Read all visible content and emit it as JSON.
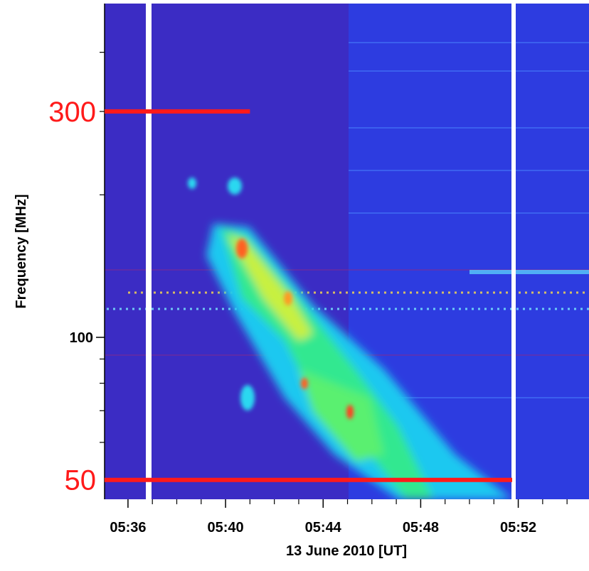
{
  "chart_data": {
    "type": "spectrogram",
    "xlabel": "13 June 2010 [UT]",
    "ylabel": "Frequency [MHz]",
    "xlim": [
      335.04,
      354.9
    ],
    "xticks": [
      {
        "value": 336,
        "label": "05:36"
      },
      {
        "value": 340,
        "label": "05:40"
      },
      {
        "value": 344,
        "label": "05:44"
      },
      {
        "value": 348,
        "label": "05:48"
      },
      {
        "value": 352,
        "label": "05:52"
      }
    ],
    "xminorticks": [
      337,
      338,
      339,
      341,
      342,
      343,
      345,
      346,
      347,
      349,
      350,
      351,
      353,
      354
    ],
    "ylog": true,
    "ylim": [
      45.5,
      507
    ],
    "yticks": [
      100
    ],
    "yminorticks": [
      60,
      70,
      80,
      90,
      200,
      300,
      400
    ],
    "annotations": [
      {
        "label": "300",
        "value": 300,
        "to": 341,
        "color": "#ff1a1a"
      },
      {
        "label": "50",
        "value": 50,
        "to": 351.75,
        "color": "#ff1a1a"
      }
    ]
  }
}
